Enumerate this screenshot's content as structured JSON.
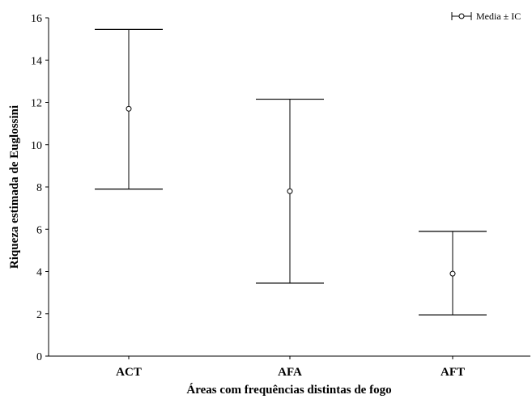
{
  "chart_data": {
    "type": "errorbar",
    "categories": [
      "ACT",
      "AFA",
      "AFT"
    ],
    "series": [
      {
        "name": "Media ± IC",
        "mean": [
          11.7,
          7.8,
          3.9
        ],
        "lower": [
          7.9,
          3.45,
          1.95
        ],
        "upper": [
          15.45,
          12.15,
          5.9
        ]
      }
    ],
    "xlabel": "Áreas com frequências distintas de fogo",
    "ylabel": "Riqueza estimada de Euglossini",
    "ylim": [
      0,
      16
    ],
    "yticks": [
      0,
      2,
      4,
      6,
      8,
      10,
      12,
      14,
      16
    ],
    "grid": false,
    "legend_position": "top-right"
  }
}
